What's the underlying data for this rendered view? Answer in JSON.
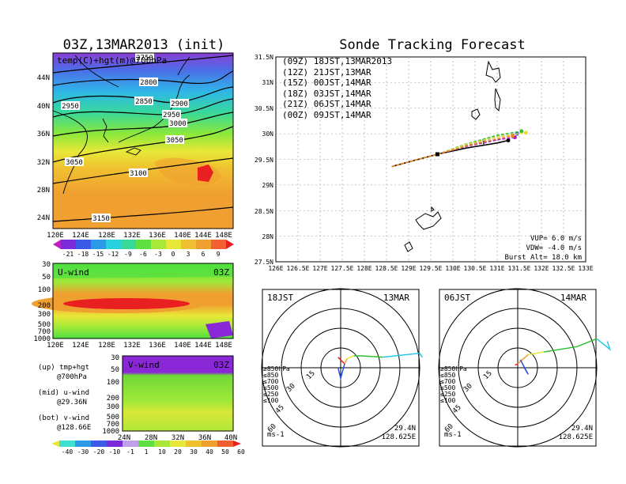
{
  "left_map": {
    "title": "03Z,13MAR2013 (init)",
    "field_label": "temp(C)+hgt(m)@700hPa",
    "lat_labels": [
      "44N",
      "40N",
      "36N",
      "32N",
      "28N",
      "24N"
    ],
    "lon_labels": [
      "120E",
      "124E",
      "128E",
      "132E",
      "136E",
      "140E",
      "144E",
      "148E"
    ],
    "contour_labels": [
      "2750",
      "2800",
      "2850",
      "2900",
      "2950",
      "2950",
      "3000",
      "3050",
      "3050",
      "3100",
      "3150"
    ],
    "colorbar_labels": [
      "-21",
      "-18",
      "-15",
      "-12",
      "-9",
      "-6",
      "-3",
      "0",
      "3",
      "6",
      "9"
    ]
  },
  "u_panel": {
    "title": "U-wind",
    "time": "03Z",
    "y_labels": [
      "30",
      "50",
      "100",
      "200",
      "300",
      "500",
      "700",
      "1000"
    ],
    "x_labels": [
      "120E",
      "124E",
      "128E",
      "132E",
      "136E",
      "140E",
      "144E",
      "148E"
    ]
  },
  "v_panel": {
    "title": "V-wind",
    "time": "03Z",
    "y_labels": [
      "30",
      "50",
      "100",
      "200",
      "300",
      "500",
      "700",
      "1000"
    ],
    "x_labels": [
      "24N",
      "28N",
      "32N",
      "36N",
      "40N"
    ]
  },
  "legend_notes": [
    {
      "label": "(up) tmp+hgt",
      "sub": "@700hPa"
    },
    {
      "label": "(mid) u-wind",
      "sub": "@29.36N"
    },
    {
      "label": "(bot) v-wind",
      "sub": "@128.66E"
    }
  ],
  "bottom_colorbar_labels": [
    "-40",
    "-30",
    "-20",
    "-10",
    "-1",
    "1",
    "10",
    "20",
    "30",
    "40",
    "50",
    "60"
  ],
  "colors": {
    "orange": "#f0a030",
    "red": "#e81e1e",
    "green": "#6ce83c",
    "yellow": "#e8e838",
    "cyan": "#28d8e8",
    "blue": "#2850e8",
    "purple": "#8828d8"
  },
  "tracking": {
    "title": "Sonde Tracking Forecast",
    "legend": [
      {
        "label": "(09Z)  18JST,13MAR2013",
        "color": "#000000"
      },
      {
        "label": "(12Z)  21JST,13MAR",
        "color": "#a020c8"
      },
      {
        "label": "(15Z)  00JST,14MAR",
        "color": "#2850e8"
      },
      {
        "label": "(18Z)  03JST,14MAR",
        "color": "#30c030"
      },
      {
        "label": "(21Z)  06JST,14MAR",
        "color": "#e8e030"
      },
      {
        "label": "(00Z)  09JST,14MAR",
        "color": "#f08020"
      }
    ],
    "y_labels": [
      "31.5N",
      "31N",
      "30.5N",
      "30N",
      "29.5N",
      "29N",
      "28.5N",
      "28N",
      "27.5N"
    ],
    "x_labels": [
      "126E",
      "126.5E",
      "127E",
      "127.5E",
      "128E",
      "128.5E",
      "129E",
      "129.5E",
      "130E",
      "130.5E",
      "131E",
      "131.5E",
      "132E",
      "132.5E",
      "133E"
    ],
    "params": [
      "VUP=  6.0  m/s",
      "VDW= -4.0  m/s",
      "Burst Alt= 18.0  km"
    ]
  },
  "chart_data": [
    {
      "type": "line",
      "title": "Sonde Tracking Forecast",
      "xlim": [
        126,
        133
      ],
      "ylim": [
        27.5,
        31.5
      ],
      "xlabel": "",
      "ylabel": "",
      "series": [
        {
          "name": "(09Z)  18JST,13MAR2013",
          "x": [
            128.62,
            129.65,
            130.3,
            131.0,
            131.25
          ],
          "y": [
            29.36,
            29.6,
            29.72,
            29.82,
            29.87
          ]
        },
        {
          "name": "(12Z)  21JST,13MAR",
          "x": [
            128.62,
            129.65,
            130.3,
            131.0,
            131.4
          ],
          "y": [
            29.36,
            29.6,
            29.75,
            29.88,
            29.93
          ]
        },
        {
          "name": "(15Z)  00JST,14MAR",
          "x": [
            128.62,
            129.65,
            130.3,
            131.0,
            131.45
          ],
          "y": [
            29.36,
            29.6,
            29.78,
            29.94,
            30.0
          ]
        },
        {
          "name": "(18Z)  03JST,14MAR",
          "x": [
            128.62,
            129.65,
            130.3,
            131.0,
            131.55
          ],
          "y": [
            29.36,
            29.6,
            29.8,
            29.97,
            30.05
          ]
        },
        {
          "name": "(21Z)  06JST,14MAR",
          "x": [
            128.62,
            129.65,
            130.3,
            131.0,
            131.65
          ],
          "y": [
            29.36,
            29.6,
            29.79,
            29.94,
            30.02
          ]
        },
        {
          "name": "(00Z)  09JST,14MAR",
          "x": [
            128.62,
            129.65,
            130.3,
            131.0,
            131.35
          ],
          "y": [
            29.36,
            29.6,
            29.76,
            29.9,
            29.96
          ]
        }
      ]
    },
    {
      "type": "line",
      "title": "18JST 13MAR hodograph",
      "location": [
        "29.4N",
        "128.625E"
      ],
      "unit": "ms-1",
      "rings": [
        "15",
        "30",
        "45",
        "60"
      ],
      "pressure_levels": [
        "≥850hPa",
        "≤850",
        "≤700",
        "≤500",
        "≤250",
        "≤100"
      ],
      "series": [
        {
          "name": "≥850hPa",
          "u": [
            -2,
            3
          ],
          "v": [
            8,
            3
          ]
        },
        {
          "name": "≤850",
          "u": [
            3,
            5
          ],
          "v": [
            3,
            7
          ]
        },
        {
          "name": "≤700",
          "u": [
            5,
            10
          ],
          "v": [
            7,
            9
          ]
        },
        {
          "name": "≤500",
          "u": [
            10,
            16,
            32
          ],
          "v": [
            9,
            9,
            8
          ]
        },
        {
          "name": "≤250",
          "u": [
            32,
            60,
            62
          ],
          "v": [
            8,
            11,
            8
          ]
        },
        {
          "name": "≤100",
          "u": [
            3,
            0,
            -2
          ],
          "v": [
            3,
            -8,
            0
          ]
        }
      ]
    },
    {
      "type": "line",
      "title": "06JST 14MAR hodograph",
      "location": [
        "29.4N",
        "128.625E"
      ],
      "unit": "ms-1",
      "rings": [
        "15",
        "30",
        "45",
        "60"
      ],
      "pressure_levels": [
        "≥850hPa",
        "≤850",
        "≤700",
        "≤500",
        "≤250",
        "≤100"
      ],
      "series": [
        {
          "name": "≥850hPa",
          "u": [
            -2,
            0
          ],
          "v": [
            2,
            3
          ]
        },
        {
          "name": "≤850",
          "u": [
            0,
            8
          ],
          "v": [
            3,
            10
          ]
        },
        {
          "name": "≤700",
          "u": [
            8,
            20
          ],
          "v": [
            10,
            12
          ]
        },
        {
          "name": "≤500",
          "u": [
            20,
            45,
            60
          ],
          "v": [
            12,
            16,
            22
          ]
        },
        {
          "name": "≤250",
          "u": [
            60,
            70,
            68
          ],
          "v": [
            22,
            14,
            20
          ]
        },
        {
          "name": "≤100",
          "u": [
            5,
            8,
            2
          ],
          "v": [
            0,
            -5,
            6
          ]
        }
      ]
    }
  ]
}
